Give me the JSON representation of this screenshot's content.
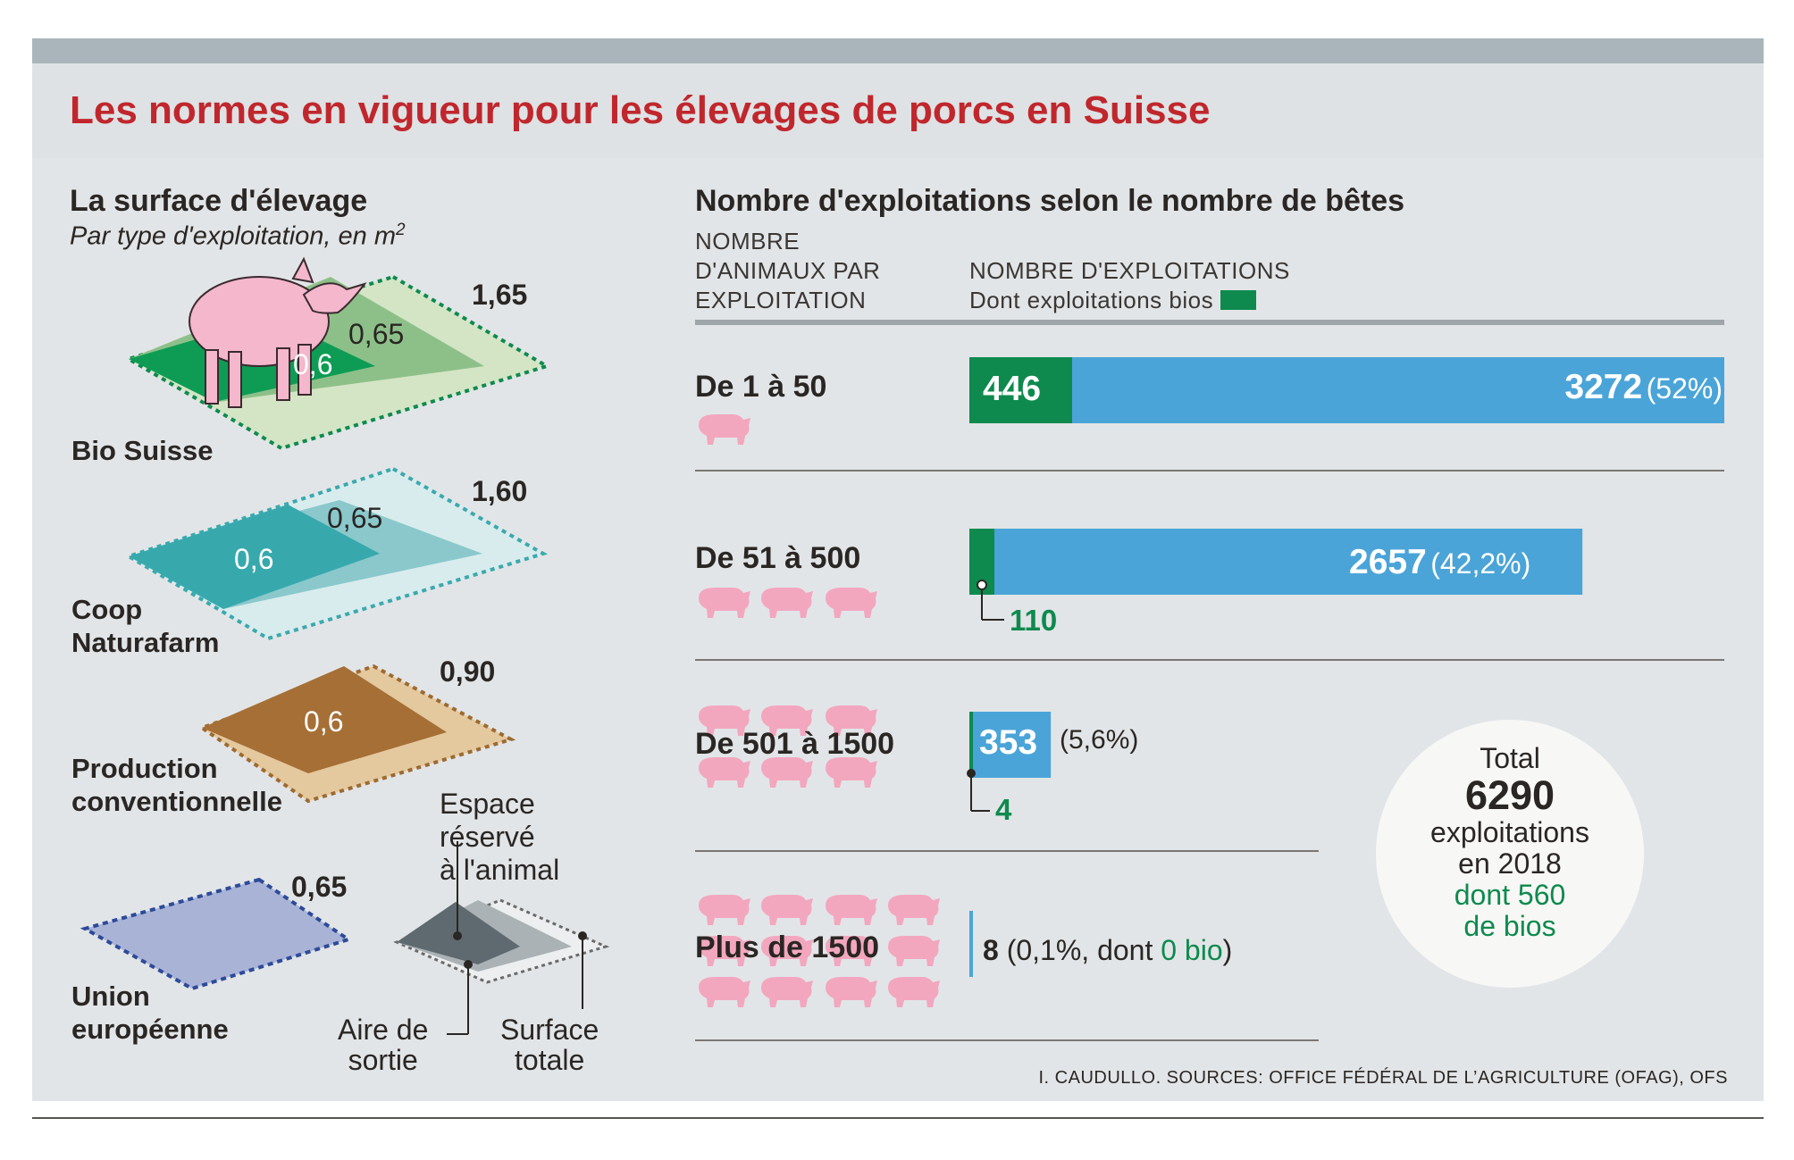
{
  "title": "Les normes en vigueur pour les élevages de porcs en Suisse",
  "colors": {
    "title": "#c0272d",
    "bio": "#0e8a4e",
    "bar": "#4aa4d8",
    "pig": "#f2a7bf"
  },
  "surface": {
    "heading": "La surface d'élevage",
    "subheading": "Par type d'exploitation, en m",
    "sup": "2",
    "types": [
      {
        "label": "Bio Suisse",
        "values": [
          "0,6",
          "0,65",
          "1,65"
        ]
      },
      {
        "label_lines": [
          "Coop",
          "Naturafarm"
        ],
        "values": [
          "0,6",
          "0,65",
          "1,60"
        ]
      },
      {
        "label_lines": [
          "Production",
          "conventionnelle"
        ],
        "values": [
          "0,6",
          "0,90"
        ]
      },
      {
        "label_lines": [
          "Union",
          "européenne"
        ],
        "values": [
          "0,65"
        ]
      }
    ],
    "legend": {
      "espace": [
        "Espace",
        "réservé",
        "à l'animal"
      ],
      "aire": [
        "Aire de",
        "sortie"
      ],
      "totale": [
        "Surface",
        "totale"
      ]
    }
  },
  "farms": {
    "heading": "Nombre d'exploitations selon le nombre de bêtes",
    "col1": [
      "NOMBRE",
      "D'ANIMAUX PAR",
      "EXPLOITATION"
    ],
    "col2": "NOMBRE D'EXPLOITATIONS",
    "col2_sub": "Dont exploitations bios",
    "rows": [
      {
        "label": "De 1 à 50",
        "total": "3272",
        "pct": "(52%)",
        "bio": "446"
      },
      {
        "label": "De 51 à 500",
        "total": "2657",
        "pct": "(42,2%)",
        "bio": "110"
      },
      {
        "label": "De 501 à 1500",
        "total": "353",
        "pct": "(5,6%)",
        "bio": "4"
      },
      {
        "label": "Plus de 1500",
        "total": "8",
        "pct_pre": "(0,1%, dont ",
        "bio_text": "0 bio",
        "pct_post": ")"
      }
    ],
    "total": {
      "word": "Total",
      "number": "6290",
      "line1": "exploitations",
      "line2": "en 2018",
      "bio1": "dont 560",
      "bio2": "de bios"
    }
  },
  "chart_data": [
    {
      "type": "bar",
      "title": "Nombre d'exploitations selon le nombre de bêtes",
      "categories": [
        "De 1 à 50",
        "De 51 à 500",
        "De 501 à 1500",
        "Plus de 1500"
      ],
      "series": [
        {
          "name": "Nombre d'exploitations",
          "values": [
            3272,
            2657,
            353,
            8
          ]
        },
        {
          "name": "Dont exploitations bios",
          "values": [
            446,
            110,
            4,
            0
          ]
        }
      ],
      "percent_labels": [
        "52%",
        "42,2%",
        "5,6%",
        "0,1%"
      ],
      "pig_icons": [
        1,
        3,
        6,
        12
      ],
      "xlim": [
        0,
        3272
      ]
    },
    {
      "type": "area",
      "title": "La surface d'élevage",
      "units": "m2",
      "categories": [
        "Bio Suisse",
        "Coop Naturafarm",
        "Production conventionnelle",
        "Union européenne"
      ],
      "series": [
        {
          "name": "Espace réservé à l'animal",
          "values": [
            0.6,
            0.6,
            0.6,
            0.65
          ]
        },
        {
          "name": "Aire de sortie",
          "values": [
            0.65,
            0.65,
            null,
            null
          ]
        },
        {
          "name": "Surface totale",
          "values": [
            1.65,
            1.6,
            0.9,
            0.65
          ]
        }
      ]
    }
  ]
}
